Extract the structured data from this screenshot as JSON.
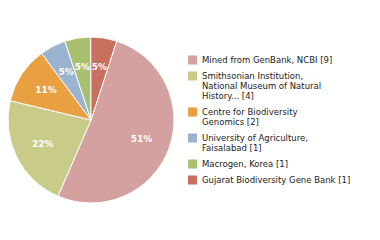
{
  "chart_data": {
    "type": "pie",
    "categories": [
      "Mined from GenBank, NCBI [9]",
      "Smithsonian Institution,\nNational Museum of Natural\nHistory... [4]",
      "Centre for Biodiversity\nGenomics [2]",
      "University of Agriculture,\nFaisalabad [1]",
      "Macrogen, Korea [1]",
      "Gujarat Biodiversity Gene Bank [1]"
    ],
    "values": [
      51,
      22,
      11,
      5,
      5,
      5
    ],
    "value_labels": [
      "51%",
      "22%",
      "11%",
      "5%",
      "5%",
      "5%"
    ],
    "colors": [
      "#d4a0a0",
      "#c8cc88",
      "#e8a040",
      "#9ab4d0",
      "#a8c070",
      "#c87060"
    ],
    "data_labels": true,
    "legend": "right"
  }
}
